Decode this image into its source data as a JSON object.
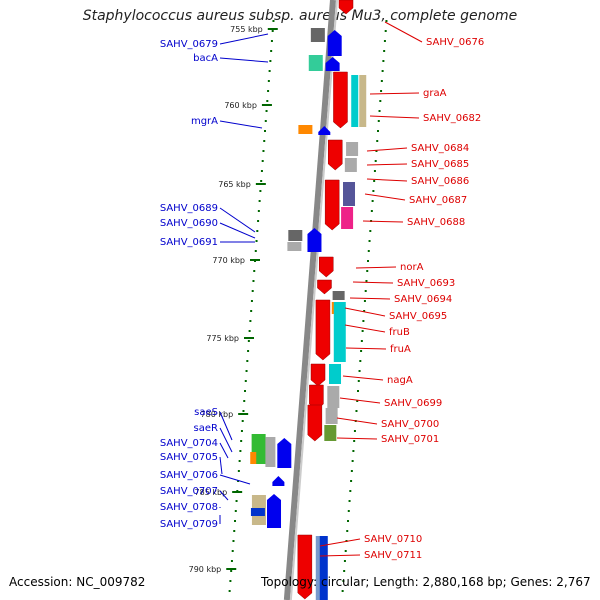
{
  "title": "Staphylococcus aureus subsp. aureus Mu3, complete genome",
  "footer": {
    "accession": "Accession: NC_009782",
    "topology": "Topology: circular; Length: 2,880,168 bp; Genes: 2,767"
  },
  "colors": {
    "left_label": "#0000cc",
    "right_label": "#dd0000",
    "backbone": "#888888",
    "tick_mark": "#006600"
  },
  "scale_ticks": [
    {
      "label": "755 kbp"
    },
    {
      "label": "760 kbp"
    },
    {
      "label": "765 kbp"
    },
    {
      "label": "770 kbp"
    },
    {
      "label": "775 kbp"
    },
    {
      "label": "780 kbp"
    },
    {
      "label": "785 kbp"
    },
    {
      "label": "790 kbp"
    }
  ],
  "left_genes": [
    {
      "name": "SAHV_0679"
    },
    {
      "name": "bacA"
    },
    {
      "name": "mgrA"
    },
    {
      "name": "SAHV_0689"
    },
    {
      "name": "SAHV_0690"
    },
    {
      "name": "SAHV_0691"
    },
    {
      "name": "saeS"
    },
    {
      "name": "saeR"
    },
    {
      "name": "SAHV_0704"
    },
    {
      "name": "SAHV_0705"
    },
    {
      "name": "SAHV_0706"
    },
    {
      "name": "SAHV_0707"
    },
    {
      "name": "SAHV_0708"
    },
    {
      "name": "SAHV_0709"
    }
  ],
  "right_genes": [
    {
      "name": "SAHV_0676"
    },
    {
      "name": "graA"
    },
    {
      "name": "SAHV_0682"
    },
    {
      "name": "SAHV_0684"
    },
    {
      "name": "SAHV_0685"
    },
    {
      "name": "SAHV_0686"
    },
    {
      "name": "SAHV_0687"
    },
    {
      "name": "SAHV_0688"
    },
    {
      "name": "norA"
    },
    {
      "name": "SAHV_0693"
    },
    {
      "name": "SAHV_0694"
    },
    {
      "name": "SAHV_0695"
    },
    {
      "name": "fruB"
    },
    {
      "name": "fruA"
    },
    {
      "name": "nagA"
    },
    {
      "name": "SAHV_0699"
    },
    {
      "name": "SAHV_0700"
    },
    {
      "name": "SAHV_0701"
    },
    {
      "name": "SAHV_0710"
    },
    {
      "name": "SAHV_0711"
    }
  ]
}
